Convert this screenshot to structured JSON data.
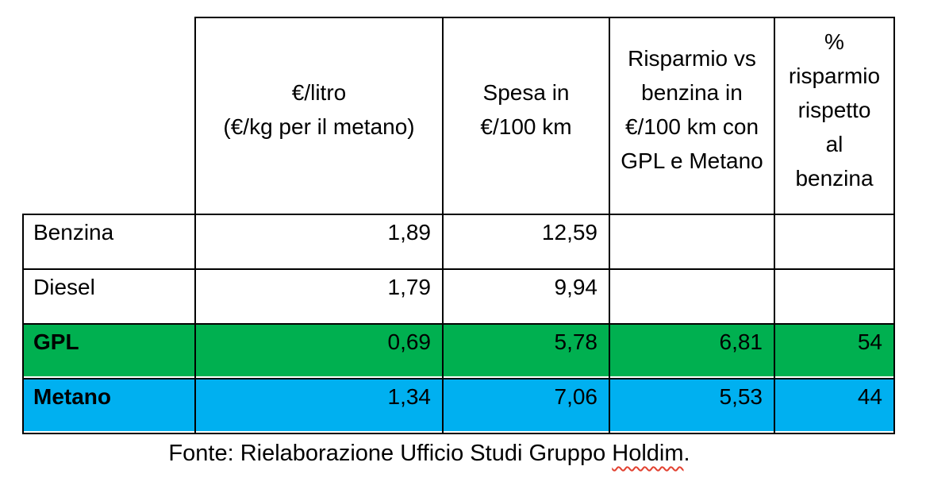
{
  "table": {
    "header": {
      "corner": "",
      "columns": [
        "€/litro\n(€/kg per il metano)",
        "Spesa in\n€/100 km",
        "Risparmio vs\nbenzina in\n€/100 km con\nGPL e Metano",
        "%\nrisparmio\nrispetto\nal\nbenzina"
      ]
    },
    "rows": [
      {
        "label": "Benzina",
        "values": [
          "1,89",
          "12,59",
          "",
          ""
        ]
      },
      {
        "label": "Diesel",
        "values": [
          "1,79",
          "9,94",
          "",
          ""
        ]
      },
      {
        "label": "GPL",
        "values": [
          "0,69",
          "5,78",
          "6,81",
          "54"
        ]
      },
      {
        "label": "Metano",
        "values": [
          "1,34",
          "7,06",
          "5,53",
          "44"
        ]
      }
    ]
  },
  "footer": {
    "prefix": "Fonte: Rielaborazione Ufficio Studi Gruppo ",
    "misspelled_word": "Holdim",
    "suffix": "."
  },
  "colors": {
    "gpl_row_green": "#00B050",
    "metano_row_blue": "#00B0F0",
    "border_black": "#000000",
    "spellcheck_red": "#e2402f",
    "text_black": "#000000"
  }
}
